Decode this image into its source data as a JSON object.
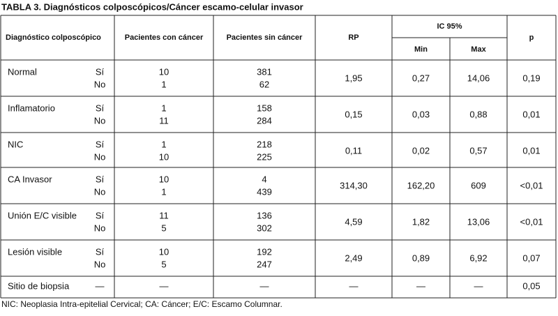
{
  "title": "TABLA 3.  Diagnósticos colposcópicos/Cáncer escamo-celular invasor",
  "table": {
    "headers": {
      "diagnosis": "Diagnóstico colposcópico",
      "with_cancer": "Pacientes con cáncer",
      "without_cancer": "Pacientes sin cáncer",
      "rp": "RP",
      "ic": "IC 95%",
      "min": "Min",
      "max": "Max",
      "p": "p"
    },
    "rows": [
      {
        "label": "Normal",
        "flags": [
          "Sí",
          "No"
        ],
        "con": [
          "10",
          "1"
        ],
        "sin": [
          "381",
          "62"
        ],
        "rp": "1,95",
        "min": "0,27",
        "max": "14,06",
        "p": "0,19"
      },
      {
        "label": "Inflamatorio",
        "flags": [
          "Sí",
          "No"
        ],
        "con": [
          "1",
          "11"
        ],
        "sin": [
          "158",
          "284"
        ],
        "rp": "0,15",
        "min": "0,03",
        "max": "0,88",
        "p": "0,01"
      },
      {
        "label": "NIC",
        "flags": [
          "Sí",
          "No"
        ],
        "con": [
          "1",
          "10"
        ],
        "sin": [
          "218",
          "225"
        ],
        "rp": "0,11",
        "min": "0,02",
        "max": "0,57",
        "p": "0,01"
      },
      {
        "label": "CA Invasor",
        "flags": [
          "Sí",
          "No"
        ],
        "con": [
          "10",
          "1"
        ],
        "sin": [
          "4",
          "439"
        ],
        "rp": "314,30",
        "min": "162,20",
        "max": "609",
        "p": "<0,01"
      },
      {
        "label": "Unión E/C visible",
        "flags": [
          "Sí",
          "No"
        ],
        "con": [
          "11",
          "5"
        ],
        "sin": [
          "136",
          "302"
        ],
        "rp": "4,59",
        "min": "1,82",
        "max": "13,06",
        "p": "<0,01"
      },
      {
        "label": "Lesión visible",
        "flags": [
          "Sí",
          "No"
        ],
        "con": [
          "10",
          "5"
        ],
        "sin": [
          "192",
          "247"
        ],
        "rp": "2,49",
        "min": "0,89",
        "max": "6,92",
        "p": "0,07"
      },
      {
        "label": "Sitio de biopsia",
        "flags": [
          "—"
        ],
        "con": [
          "—"
        ],
        "sin": [
          "—"
        ],
        "rp": "—",
        "min": "—",
        "max": "—",
        "p": "0,05"
      }
    ]
  },
  "footnote": "NIC: Neoplasia Intra-epitelial Cervical; CA: Cáncer; E/C: Escamo Columnar."
}
